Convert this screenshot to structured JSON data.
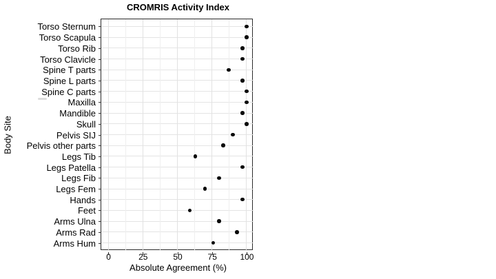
{
  "chart_data": {
    "type": "scatter",
    "variant": "dot-plot",
    "title": "CROMRIS Activity Index",
    "xlabel": "Absolute Agreement (%)",
    "ylabel": "Body Site",
    "categories": [
      "Torso Sternum",
      "Torso Scapula",
      "Torso Rib",
      "Torso Clavicle",
      "Spine T parts",
      "Spine L parts",
      "Spine C parts",
      "Maxilla",
      "Mandible",
      "Skull",
      "Pelvis SIJ",
      "Pelvis other parts",
      "Legs Tib",
      "Legs Patella",
      "Legs Fib",
      "Legs Fem",
      "Hands",
      "Feet",
      "Arms Ulna",
      "Arms Rad",
      "Arms Hum"
    ],
    "values": [
      100,
      100,
      97,
      97,
      87,
      97,
      100,
      100,
      97,
      100,
      90,
      83,
      63,
      97,
      80,
      70,
      97,
      59,
      80,
      93,
      76
    ],
    "xlim": [
      -5,
      105
    ],
    "x_major_ticks": [
      0,
      25,
      50,
      75,
      100
    ],
    "x_minor_gridlines": [
      12.5,
      37.5,
      62.5,
      87.5
    ],
    "grid": "vertical major+minor, horizontal per category",
    "legend_position": "none",
    "marker": "filled-circle",
    "colors": {
      "marker": "#0a0a0a",
      "gridline_major": "#e2e2e2",
      "gridline_minor": "#efefef",
      "panel_border": "#2b2b2b",
      "background": "#ffffff",
      "text": "#000000"
    }
  }
}
